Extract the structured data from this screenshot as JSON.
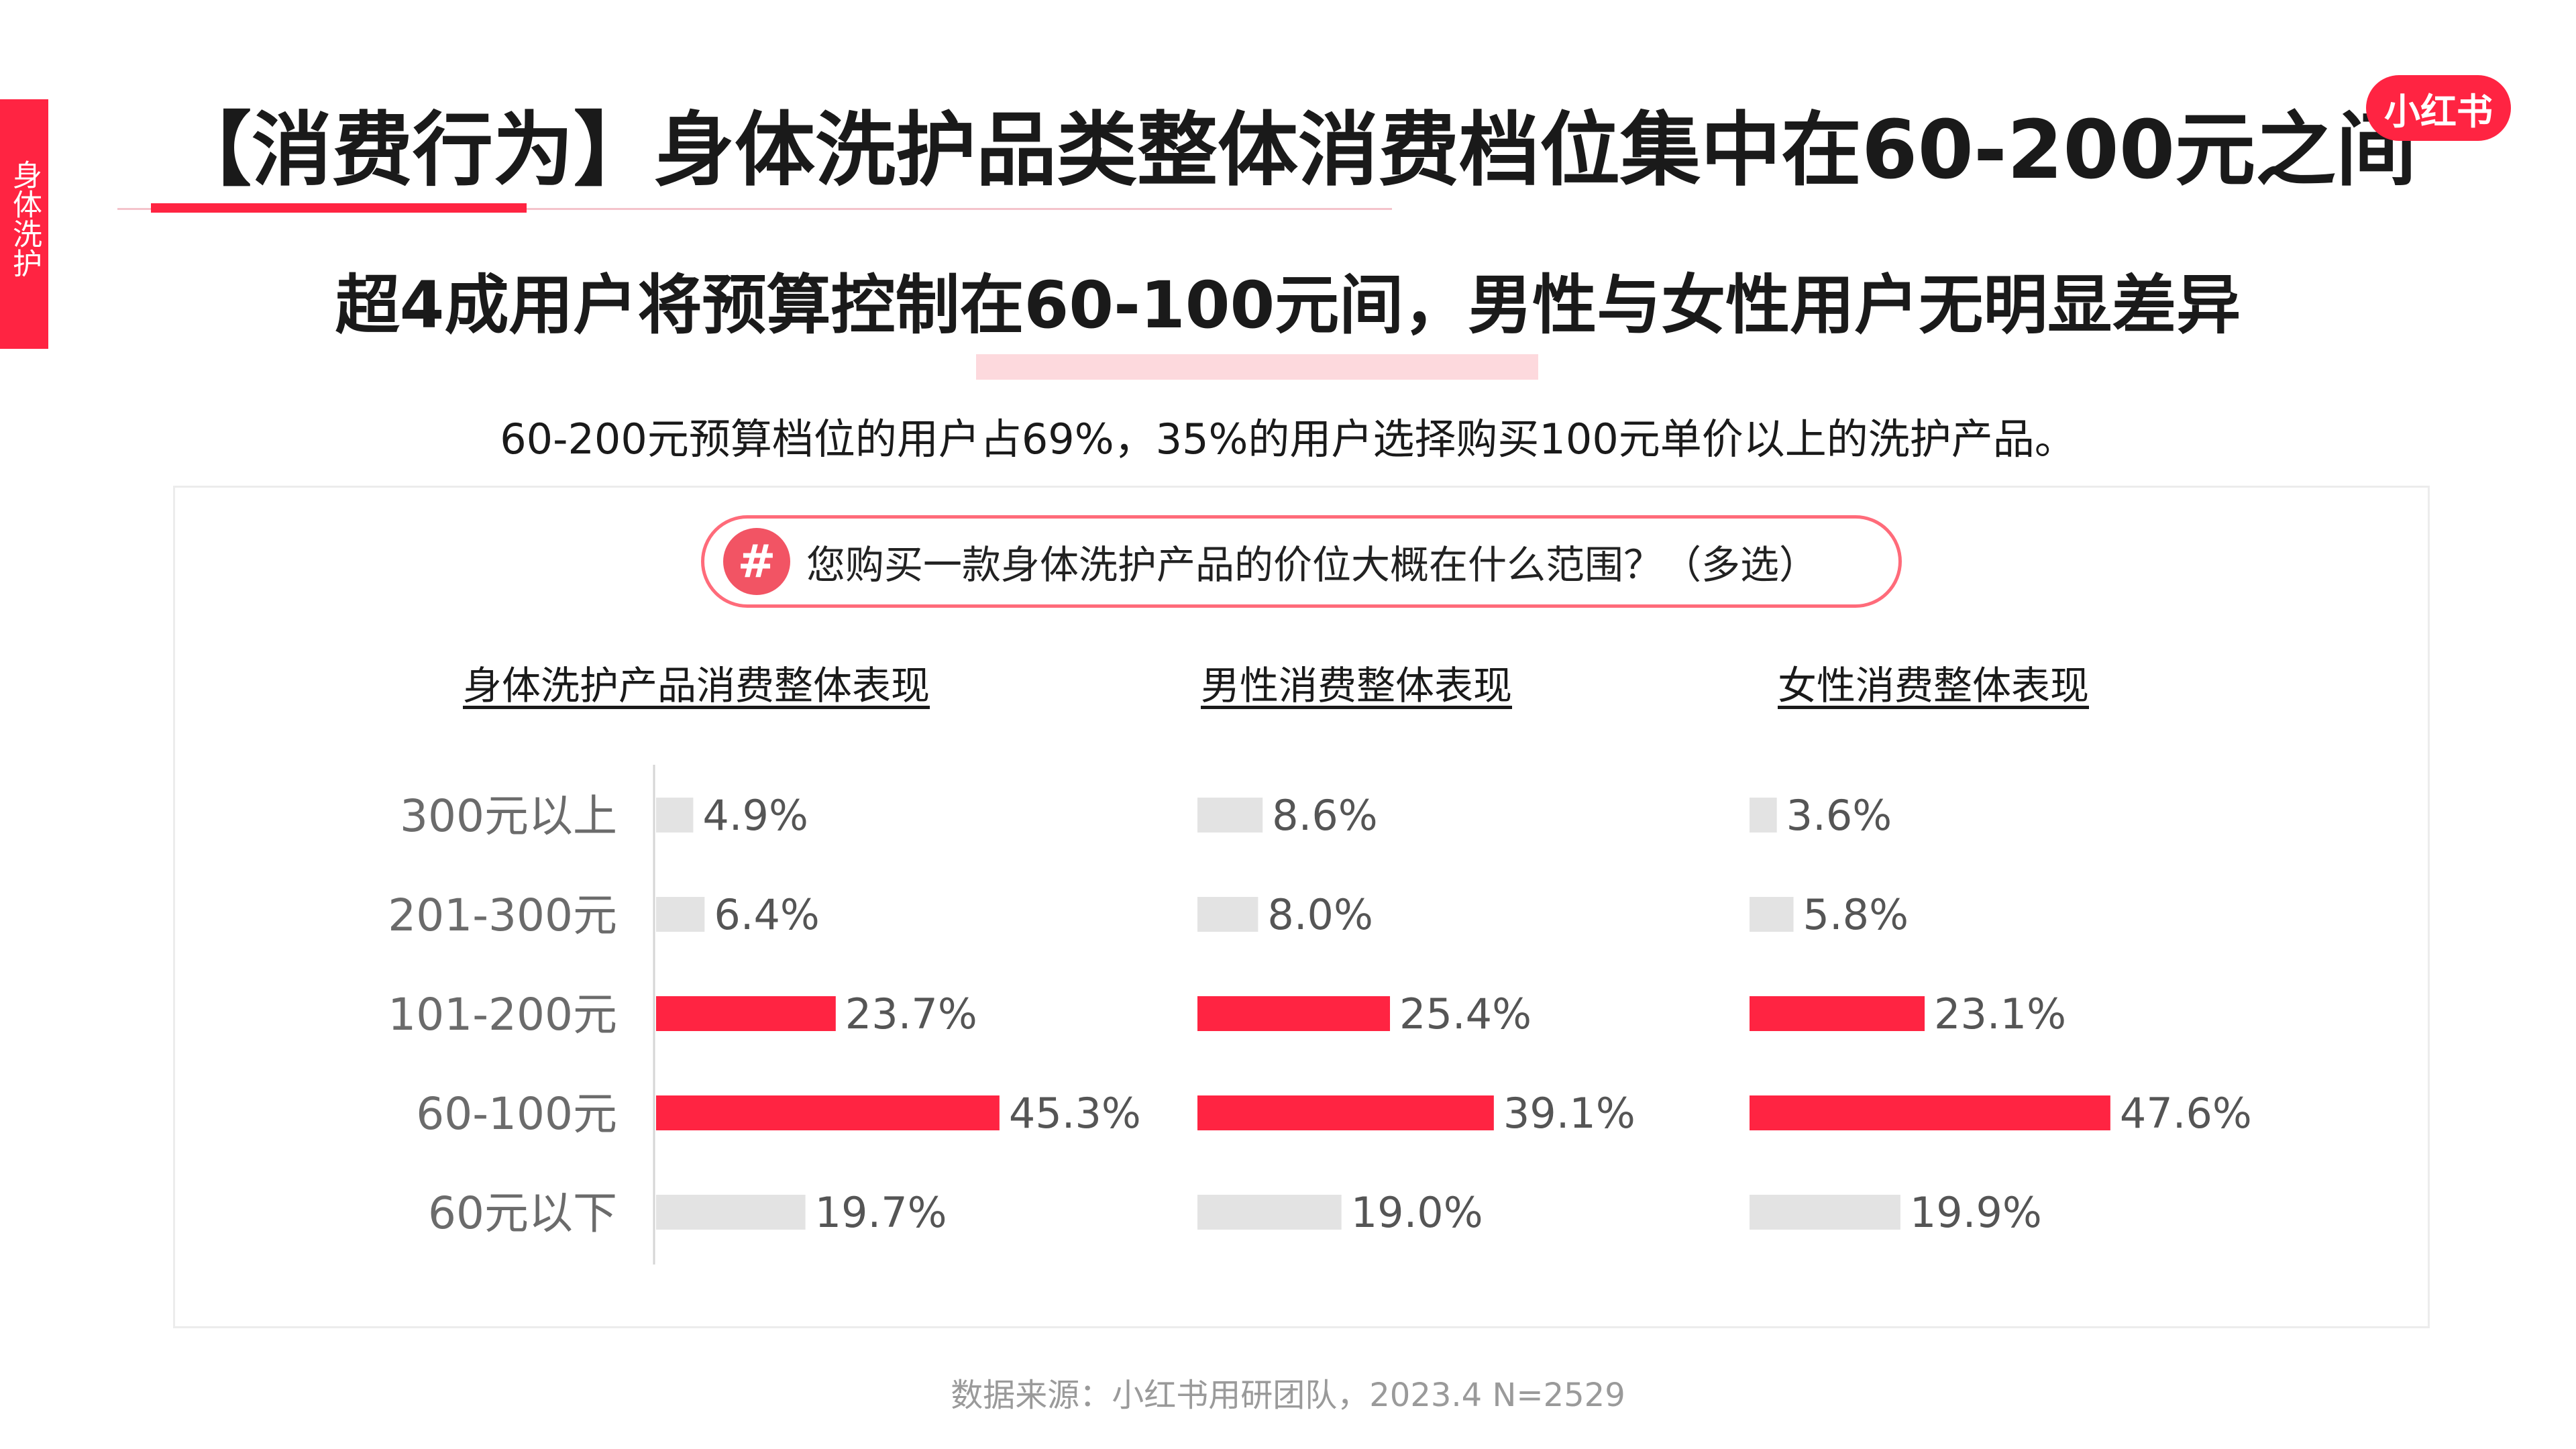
{
  "side_tab": "身体洗护",
  "title": "【消费行为】身体洗护品类整体消费档位集中在60-200元之间",
  "logo": "小红书",
  "subtitle": "超4成用户将预算控制在60-100元间，男性与女性用户无明显差异",
  "description": "60-200元预算档位的用户占69%，35%的用户选择购买100元单价以上的洗护产品。",
  "question": {
    "icon": "#",
    "icon_name": "hash-icon",
    "text": "您购买一款身体洗护产品的价位大概在什么范围？（多选）"
  },
  "footer": "数据来源：小红书用研团队，2023.4 N=2529",
  "colors": {
    "accent": "#ff2442",
    "bar_highlight": "#ff2442",
    "bar_default": "#e3e3e3"
  },
  "chart_data": {
    "type": "bar",
    "orientation": "horizontal",
    "categories": [
      "300元以上",
      "201-300元",
      "101-200元",
      "60-100元",
      "60元以下"
    ],
    "highlighted_categories": [
      "101-200元",
      "60-100元"
    ],
    "value_unit": "%",
    "panels": [
      {
        "title": "身体洗护产品消费整体表现",
        "values": [
          4.9,
          6.4,
          23.7,
          45.3,
          19.7
        ],
        "labels": [
          "4.9%",
          "6.4%",
          "23.7%",
          "45.3%",
          "19.7%"
        ]
      },
      {
        "title": "男性消费整体表现",
        "values": [
          8.6,
          8.0,
          25.4,
          39.1,
          19.0
        ],
        "labels": [
          "8.6%",
          "8.0%",
          "25.4%",
          "39.1%",
          "19.0%"
        ]
      },
      {
        "title": "女性消费整体表现",
        "values": [
          3.6,
          5.8,
          23.1,
          47.6,
          19.9
        ],
        "labels": [
          "3.6%",
          "5.8%",
          "23.1%",
          "47.6%",
          "19.9%"
        ]
      }
    ]
  }
}
